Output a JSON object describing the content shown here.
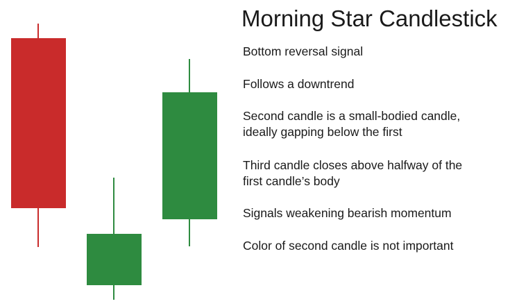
{
  "title": "Morning Star Candlestick",
  "colors": {
    "bearish": "#c92b2b",
    "bullish": "#2e8b40"
  },
  "candles": [
    {
      "name": "first",
      "direction": "bearish"
    },
    {
      "name": "second",
      "direction": "bullish"
    },
    {
      "name": "third",
      "direction": "bullish"
    }
  ],
  "points": [
    {
      "lines": [
        "Bottom reversal signal"
      ]
    },
    {
      "lines": [
        "Follows a downtrend"
      ]
    },
    {
      "lines": [
        "Second candle is a small-bodied candle,",
        "ideally gapping below the first"
      ]
    },
    {
      "lines": [
        "Third candle closes above halfway of the",
        "first candle’s body"
      ]
    },
    {
      "lines": [
        "Signals weakening bearish momentum"
      ]
    },
    {
      "lines": [
        "Color of second candle is not important"
      ]
    }
  ]
}
